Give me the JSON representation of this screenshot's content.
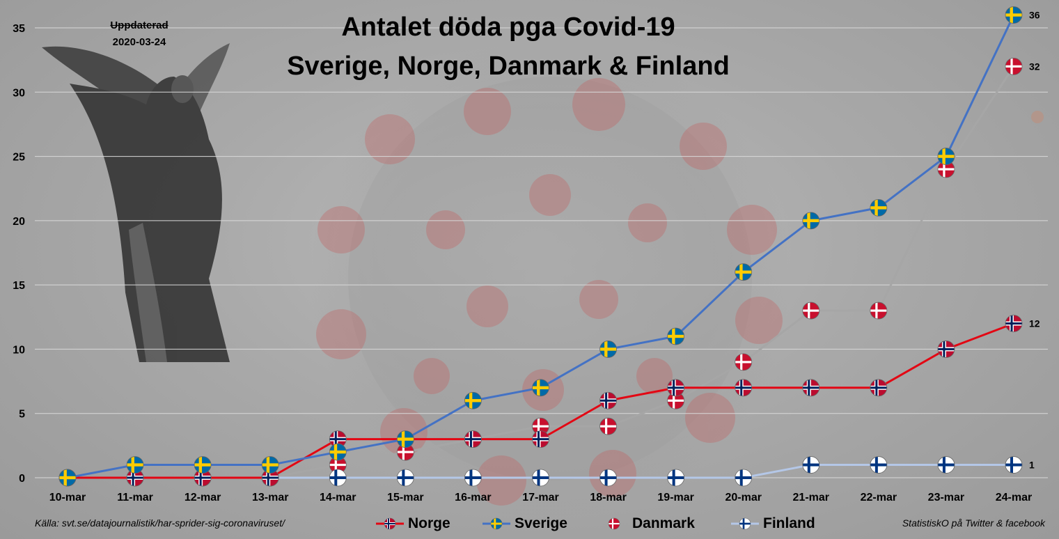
{
  "title_line1": "Antalet döda pga Covid-19",
  "title_line2": "Sverige, Norge, Danmark & Finland",
  "updated_label": "Uppdaterad",
  "updated_date": "2020-03-24",
  "source_text": "Källa: svt.se/datajournalistik/har-sprider-sig-coronaviruset/",
  "credit_text": "StatistiskO på Twitter & facebook",
  "legend": [
    {
      "name": "Norge",
      "color": "#e30613"
    },
    {
      "name": "Sverige",
      "color": "#4472c4"
    },
    {
      "name": "Danmark",
      "color": "#a6a6a6"
    },
    {
      "name": "Finland",
      "color": "#b4c7e7"
    }
  ],
  "chart_data": {
    "type": "line",
    "title": "Antalet döda pga Covid-19 — Sverige, Norge, Danmark & Finland",
    "xlabel": "",
    "ylabel": "",
    "categories": [
      "10-mar",
      "11-mar",
      "12-mar",
      "13-mar",
      "14-mar",
      "15-mar",
      "16-mar",
      "17-mar",
      "18-mar",
      "19-mar",
      "20-mar",
      "21-mar",
      "22-mar",
      "23-mar",
      "24-mar"
    ],
    "ylim": [
      0,
      35
    ],
    "yticks": [
      0,
      5,
      10,
      15,
      20,
      25,
      30,
      35
    ],
    "grid": true,
    "series": [
      {
        "name": "Danmark",
        "flag": "dk",
        "color": "#a6a6a6",
        "values": [
          0,
          0,
          0,
          0,
          1,
          2,
          3,
          4,
          4,
          6,
          9,
          13,
          13,
          24,
          32
        ],
        "end_label": "32"
      },
      {
        "name": "Finland",
        "flag": "fi",
        "color": "#b4c7e7",
        "values": [
          0,
          0,
          0,
          0,
          0,
          0,
          0,
          0,
          0,
          0,
          0,
          1,
          1,
          1,
          1
        ],
        "end_label": "1"
      },
      {
        "name": "Norge",
        "flag": "no",
        "color": "#e30613",
        "values": [
          0,
          0,
          0,
          0,
          3,
          3,
          3,
          3,
          6,
          7,
          7,
          7,
          7,
          10,
          12
        ],
        "end_label": "12"
      },
      {
        "name": "Sverige",
        "flag": "se",
        "color": "#4472c4",
        "values": [
          0,
          1,
          1,
          1,
          2,
          3,
          6,
          7,
          10,
          11,
          16,
          20,
          21,
          25,
          36
        ],
        "end_label": "36"
      }
    ]
  }
}
